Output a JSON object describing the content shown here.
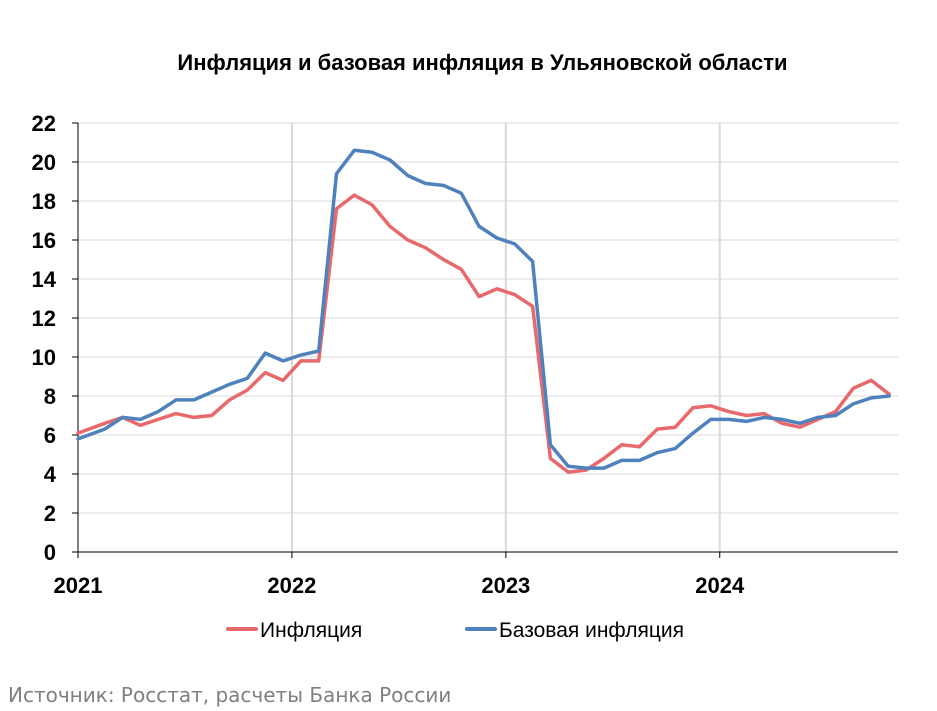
{
  "chart_data": {
    "type": "line",
    "title": "Инфляция и базовая инфляция в Ульяновской области",
    "xlabel": "",
    "ylabel": "",
    "ylim": [
      0,
      22
    ],
    "yticks": [
      "0",
      "2",
      "4",
      "6",
      "8",
      "10",
      "12",
      "14",
      "16",
      "18",
      "20",
      "22"
    ],
    "xticks": [
      "2021",
      "2022",
      "2023",
      "2024"
    ],
    "x_start": "2021-01",
    "x_end": "2024-10",
    "grid": true,
    "legend_position": "bottom",
    "series": [
      {
        "name": "Инфляция",
        "color": "#e8696b",
        "values": [
          6.1,
          6.6,
          6.9,
          6.5,
          6.8,
          7.1,
          6.9,
          7.0,
          7.8,
          8.3,
          9.2,
          8.8,
          9.8,
          9.8,
          17.6,
          18.3,
          17.8,
          16.7,
          16.0,
          15.6,
          15.0,
          14.5,
          13.1,
          13.5,
          13.2,
          12.6,
          4.8,
          4.1,
          4.2,
          4.8,
          5.5,
          5.4,
          6.3,
          6.4,
          7.4,
          7.5,
          7.2,
          7.0,
          7.1,
          6.6,
          6.4,
          6.8,
          7.2,
          8.4,
          8.8,
          8.1
        ]
      },
      {
        "name": "Базовая инфляция",
        "color": "#4f81bd",
        "values": [
          5.8,
          6.3,
          6.9,
          6.8,
          7.2,
          7.8,
          7.8,
          8.2,
          8.6,
          8.9,
          10.2,
          9.8,
          10.1,
          10.3,
          19.4,
          20.6,
          20.5,
          20.1,
          19.3,
          18.9,
          18.8,
          18.4,
          16.7,
          16.1,
          15.8,
          14.9,
          5.5,
          4.4,
          4.3,
          4.3,
          4.7,
          4.7,
          5.1,
          5.3,
          6.1,
          6.8,
          6.8,
          6.7,
          6.9,
          6.8,
          6.6,
          6.9,
          7.0,
          7.6,
          7.9,
          8.0
        ]
      }
    ]
  },
  "source_note": "Источник: Росстат, расчеты Банка России"
}
